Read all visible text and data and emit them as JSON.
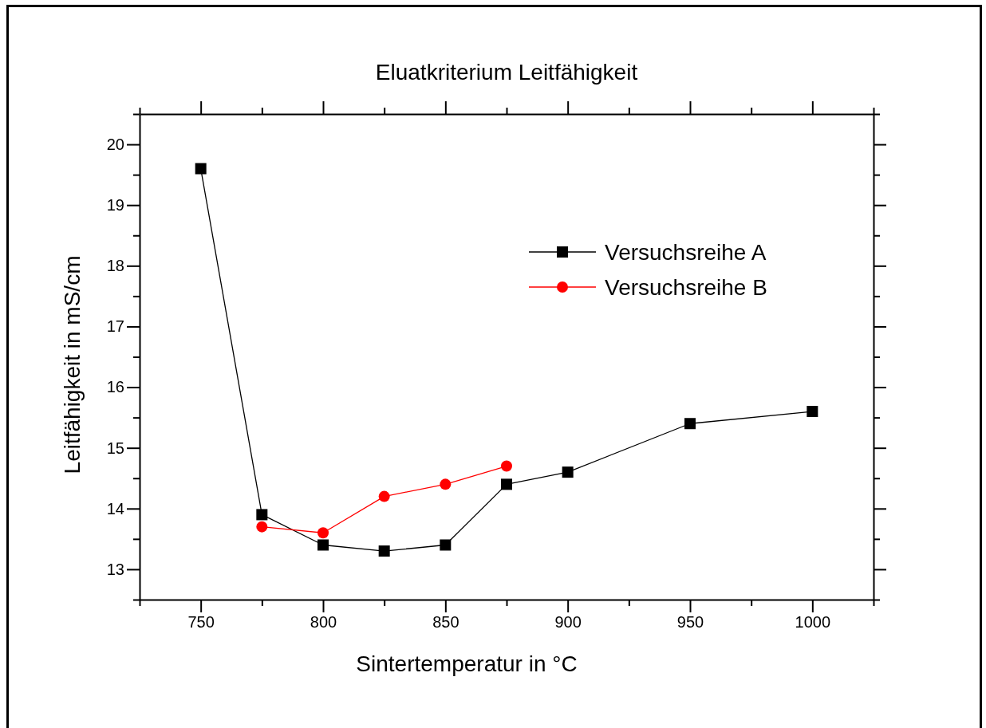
{
  "chart_data": {
    "type": "line",
    "title": "Eluatkriterium Leitfähigkeit",
    "xlabel": "Sintertemperatur in °C",
    "ylabel": "Leitfähigkeit in mS/cm",
    "xlim": [
      725,
      1025
    ],
    "ylim": [
      12.5,
      20.5
    ],
    "xticks": [
      {
        "value": 725,
        "label": null
      },
      750,
      {
        "value": 775,
        "label": null
      },
      800,
      {
        "value": 825,
        "label": null
      },
      850,
      {
        "value": 875,
        "label": null
      },
      900,
      {
        "value": 925,
        "label": null
      },
      950,
      {
        "value": 975,
        "label": null
      },
      1000,
      {
        "value": 1025,
        "label": null
      }
    ],
    "yticks": [
      {
        "value": 12.5,
        "label": null
      },
      13,
      {
        "value": 13.5,
        "label": null
      },
      14,
      {
        "value": 14.5,
        "label": null
      },
      15,
      {
        "value": 15.5,
        "label": null
      },
      16,
      {
        "value": 16.5,
        "label": null
      },
      17,
      {
        "value": 17.5,
        "label": null
      },
      18,
      {
        "value": 18.5,
        "label": null
      },
      19,
      {
        "value": 19.5,
        "label": null
      },
      20,
      {
        "value": 20.5,
        "label": null
      }
    ],
    "legend": "top right",
    "grid": false,
    "line_style": "solid",
    "series": [
      {
        "name": "Versuchsreihe A",
        "color": "#000000",
        "marker": "square",
        "x": [
          750,
          775,
          800,
          825,
          850,
          875,
          900,
          950,
          1000
        ],
        "values": [
          19.6,
          13.9,
          13.4,
          13.3,
          13.4,
          14.4,
          14.6,
          15.4,
          15.6
        ]
      },
      {
        "name": "Versuchsreihe B",
        "color": "#ff0000",
        "marker": "circle",
        "x": [
          775,
          800,
          825,
          850,
          875
        ],
        "values": [
          13.7,
          13.6,
          14.2,
          14.4,
          14.7
        ]
      }
    ]
  }
}
